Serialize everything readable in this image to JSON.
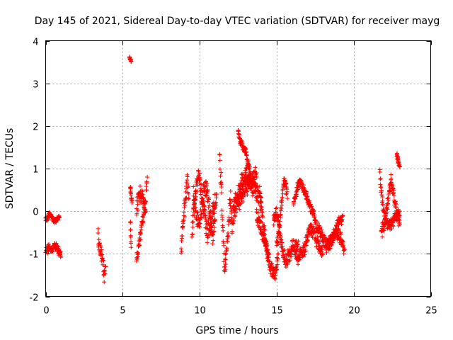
{
  "chart_data": {
    "type": "scatter",
    "title": "Day 145 of 2021, Sidereal Day-to-day VTEC variation (SDTVAR) for receiver mayg",
    "xlabel": "GPS time / hours",
    "ylabel": "SDTVAR / TECUs",
    "xlim": [
      0,
      25
    ],
    "ylim": [
      -2,
      4
    ],
    "xticks": [
      0,
      5,
      10,
      15,
      20,
      25
    ],
    "yticks": [
      -2,
      -1,
      0,
      1,
      2,
      3,
      4
    ],
    "grid": true,
    "marker": "+",
    "color": "#ff0000",
    "segments": [
      {
        "x": [
          0.0,
          0.15,
          0.3,
          0.5,
          0.7,
          0.9
        ],
        "y": [
          -0.2,
          -0.15,
          -0.05,
          -0.25,
          -0.2,
          -0.15
        ],
        "spread": 0.08
      },
      {
        "x": [
          0.0,
          0.2,
          0.4,
          0.6,
          0.8,
          1.0
        ],
        "y": [
          -0.95,
          -0.85,
          -0.9,
          -0.8,
          -0.9,
          -1.05
        ],
        "spread": 0.12
      },
      {
        "x": [
          3.4,
          3.5,
          3.6,
          3.7,
          3.8,
          3.9
        ],
        "y": [
          -0.6,
          -0.9,
          -1.0,
          -1.2,
          -1.5,
          -1.3
        ],
        "spread": 0.25
      },
      {
        "x": [
          5.45,
          5.5,
          5.55
        ],
        "y": [
          3.6,
          3.55,
          3.52
        ],
        "spread": 0.03
      },
      {
        "x": [
          5.5,
          5.55,
          5.6
        ],
        "y": [
          0.55,
          0.35,
          0.2
        ],
        "spread": 0.08
      },
      {
        "x": [
          5.5,
          5.55
        ],
        "y": [
          -0.3,
          -0.85
        ],
        "spread": 0.08
      },
      {
        "x": [
          5.9,
          6.0,
          6.1,
          6.3,
          6.5,
          6.6
        ],
        "y": [
          -1.2,
          -0.9,
          -0.7,
          -0.2,
          0.3,
          0.8
        ],
        "spread": 0.2
      },
      {
        "x": [
          5.9,
          6.1,
          6.3,
          6.5
        ],
        "y": [
          0.1,
          0.4,
          0.3,
          0.0
        ],
        "spread": 0.25
      },
      {
        "x": [
          8.8,
          8.9,
          9.0,
          9.1,
          9.2,
          9.3
        ],
        "y": [
          -0.9,
          -0.4,
          0.0,
          0.4,
          0.7,
          0.3
        ],
        "spread": 0.3
      },
      {
        "x": [
          9.5,
          9.7,
          9.9,
          10.1,
          10.3,
          10.5,
          10.7,
          10.9,
          11.1
        ],
        "y": [
          -0.4,
          0.3,
          0.8,
          0.5,
          0.0,
          -0.5,
          -0.3,
          0.1,
          0.4
        ],
        "spread": 0.3
      },
      {
        "x": [
          9.6,
          9.8,
          10.0,
          10.2,
          10.4,
          10.6,
          10.8,
          11.0
        ],
        "y": [
          0.4,
          -0.1,
          -0.3,
          0.3,
          0.6,
          0.2,
          -0.6,
          -0.2
        ],
        "spread": 0.3
      },
      {
        "x": [
          11.3,
          11.4,
          11.5,
          11.6,
          11.7,
          11.8,
          11.9,
          12.0,
          12.1,
          12.2
        ],
        "y": [
          1.2,
          0.6,
          -0.4,
          -1.3,
          -1.1,
          -0.7,
          -0.2,
          0.3,
          -0.4,
          0.1
        ],
        "spread": 0.3
      },
      {
        "x": [
          12.2,
          12.4,
          12.6,
          12.8,
          13.0,
          13.2,
          13.4,
          13.6,
          13.8,
          14.0
        ],
        "y": [
          0.1,
          0.3,
          0.5,
          0.7,
          0.9,
          0.8,
          0.6,
          0.5,
          0.4,
          0.2
        ],
        "spread": 0.3
      },
      {
        "x": [
          12.5,
          12.6,
          12.8,
          13.0,
          13.1,
          13.3
        ],
        "y": [
          1.85,
          1.7,
          1.5,
          1.4,
          1.2,
          0.9
        ],
        "spread": 0.12
      },
      {
        "x": [
          12.2,
          12.5,
          12.8,
          13.1,
          13.4,
          13.7
        ],
        "y": [
          -0.1,
          0.2,
          0.4,
          0.6,
          0.8,
          0.9
        ],
        "spread": 0.3
      },
      {
        "x": [
          13.9,
          14.0,
          14.1,
          14.2,
          14.3,
          14.4,
          14.5,
          14.7,
          14.9,
          15.0,
          15.1
        ],
        "y": [
          0.5,
          0.2,
          -0.2,
          -0.5,
          -0.8,
          -1.0,
          -1.2,
          -1.4,
          -1.5,
          -1.3,
          -1.0
        ],
        "spread": 0.2
      },
      {
        "x": [
          13.7,
          13.9,
          14.1,
          14.3,
          14.5
        ],
        "y": [
          -0.1,
          -0.3,
          -0.6,
          -0.8,
          -1.0
        ],
        "spread": 0.2
      },
      {
        "x": [
          15.0,
          15.1,
          15.2,
          15.3,
          15.4,
          15.5,
          15.6,
          15.7
        ],
        "y": [
          -0.8,
          -0.6,
          -0.3,
          0.1,
          0.5,
          0.7,
          0.6,
          0.3
        ],
        "spread": 0.2
      },
      {
        "x": [
          14.8,
          15.0,
          15.2,
          15.4,
          15.6,
          15.8,
          16.0,
          16.2,
          16.4
        ],
        "y": [
          -0.2,
          0.0,
          -0.5,
          -0.9,
          -1.2,
          -1.0,
          -0.8,
          -0.9,
          -0.7
        ],
        "spread": 0.25
      },
      {
        "x": [
          16.1,
          16.3,
          16.5,
          16.7,
          16.9,
          17.1,
          17.3,
          17.5
        ],
        "y": [
          0.2,
          0.5,
          0.7,
          0.55,
          0.4,
          0.2,
          0.0,
          -0.2
        ],
        "spread": 0.15
      },
      {
        "x": [
          16.2,
          16.4,
          16.6,
          16.8,
          17.0,
          17.2,
          17.4,
          17.6,
          17.8,
          18.0
        ],
        "y": [
          -0.9,
          -1.1,
          -1.0,
          -0.9,
          -0.6,
          -0.4,
          -0.5,
          -0.7,
          -0.9,
          -1.0
        ],
        "spread": 0.2
      },
      {
        "x": [
          17.5,
          17.8,
          18.1,
          18.4,
          18.7,
          19.0,
          19.3
        ],
        "y": [
          -0.3,
          -0.5,
          -0.7,
          -0.8,
          -0.6,
          -0.3,
          -0.1
        ],
        "spread": 0.2
      },
      {
        "x": [
          18.2,
          18.5,
          18.8,
          19.1,
          19.4
        ],
        "y": [
          -0.9,
          -0.7,
          -0.5,
          -0.6,
          -0.9
        ],
        "spread": 0.2
      },
      {
        "x": [
          21.7,
          21.8,
          21.9,
          22.0,
          22.2,
          22.4,
          22.6,
          22.8,
          23.0
        ],
        "y": [
          0.9,
          0.4,
          0.1,
          -0.1,
          -0.3,
          -0.3,
          -0.2,
          -0.1,
          0.0
        ],
        "spread": 0.2
      },
      {
        "x": [
          21.8,
          22.0,
          22.2,
          22.4,
          22.6,
          22.8,
          23.0
        ],
        "y": [
          -0.5,
          -0.3,
          0.2,
          0.7,
          0.4,
          0.0,
          -0.3
        ],
        "spread": 0.2
      },
      {
        "x": [
          22.8,
          22.85,
          22.9,
          23.0
        ],
        "y": [
          1.35,
          1.25,
          1.15,
          1.05
        ],
        "spread": 0.08
      }
    ]
  }
}
